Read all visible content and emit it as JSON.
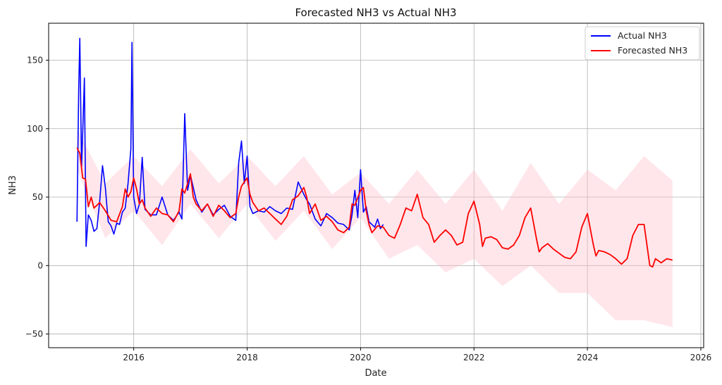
{
  "chart_data": {
    "type": "line",
    "title": "Forecasted NH3 vs Actual NH3",
    "xlabel": "Date",
    "ylabel": "NH3",
    "xlim": [
      2014.5,
      2026.05
    ],
    "ylim": [
      -60,
      177
    ],
    "xticks": [
      2016,
      2018,
      2020,
      2022,
      2024,
      2026
    ],
    "yticks": [
      -50,
      0,
      50,
      100,
      150
    ],
    "grid": true,
    "legend_position": "top-right",
    "series": [
      {
        "name": "Actual NH3",
        "color": "#0000ff",
        "x": [
          2015.0,
          2015.03,
          2015.05,
          2015.08,
          2015.1,
          2015.13,
          2015.16,
          2015.2,
          2015.25,
          2015.3,
          2015.35,
          2015.4,
          2015.45,
          2015.5,
          2015.55,
          2015.6,
          2015.65,
          2015.7,
          2015.75,
          2015.8,
          2015.85,
          2015.9,
          2015.95,
          2015.97,
          2016.0,
          2016.05,
          2016.1,
          2016.15,
          2016.2,
          2016.3,
          2016.4,
          2016.5,
          2016.6,
          2016.7,
          2016.8,
          2016.85,
          2016.9,
          2016.95,
          2017.0,
          2017.1,
          2017.2,
          2017.3,
          2017.4,
          2017.5,
          2017.6,
          2017.7,
          2017.8,
          2017.85,
          2017.9,
          2017.95,
          2018.0,
          2018.05,
          2018.1,
          2018.2,
          2018.3,
          2018.4,
          2018.5,
          2018.6,
          2018.7,
          2018.8,
          2018.9,
          2019.0,
          2019.05,
          2019.1,
          2019.2,
          2019.3,
          2019.4,
          2019.5,
          2019.6,
          2019.7,
          2019.8,
          2019.85,
          2019.9,
          2019.95,
          2020.0,
          2020.05,
          2020.1,
          2020.15,
          2020.2,
          2020.25,
          2020.3,
          2020.35,
          2020.4
        ],
        "values": [
          32,
          128,
          166,
          72,
          97,
          137,
          14,
          37,
          33,
          25,
          27,
          47,
          73,
          57,
          32,
          29,
          23,
          31,
          30,
          39,
          42,
          60,
          85,
          163,
          50,
          38,
          45,
          79,
          41,
          37,
          37,
          50,
          37,
          33,
          39,
          34,
          111,
          55,
          66,
          48,
          39,
          45,
          37,
          41,
          44,
          36,
          33,
          75,
          91,
          60,
          80,
          43,
          38,
          40,
          39,
          43,
          40,
          38,
          42,
          41,
          61,
          52,
          48,
          45,
          34,
          29,
          38,
          35,
          31,
          30,
          26,
          37,
          55,
          35,
          70,
          39,
          43,
          32,
          30,
          28,
          34,
          27,
          30
        ]
      },
      {
        "name": "Forecasted NH3",
        "color": "#ff0000",
        "x": [
          2015.0,
          2015.05,
          2015.1,
          2015.15,
          2015.2,
          2015.25,
          2015.3,
          2015.35,
          2015.4,
          2015.5,
          2015.6,
          2015.7,
          2015.8,
          2015.85,
          2015.9,
          2015.95,
          2016.0,
          2016.05,
          2016.1,
          2016.15,
          2016.2,
          2016.3,
          2016.4,
          2016.5,
          2016.6,
          2016.7,
          2016.8,
          2016.85,
          2016.9,
          2016.95,
          2017.0,
          2017.05,
          2017.1,
          2017.2,
          2017.3,
          2017.4,
          2017.5,
          2017.6,
          2017.7,
          2017.8,
          2017.85,
          2017.9,
          2018.0,
          2018.05,
          2018.1,
          2018.2,
          2018.3,
          2018.4,
          2018.5,
          2018.6,
          2018.7,
          2018.8,
          2018.9,
          2019.0,
          2019.05,
          2019.1,
          2019.2,
          2019.3,
          2019.4,
          2019.5,
          2019.6,
          2019.7,
          2019.8,
          2019.85,
          2019.9,
          2020.0,
          2020.05,
          2020.1,
          2020.15,
          2020.2,
          2020.3,
          2020.4,
          2020.5,
          2020.6,
          2020.7,
          2020.8,
          2020.9,
          2021.0,
          2021.1,
          2021.2,
          2021.3,
          2021.4,
          2021.5,
          2021.6,
          2021.7,
          2021.8,
          2021.9,
          2022.0,
          2022.1,
          2022.15,
          2022.2,
          2022.3,
          2022.4,
          2022.5,
          2022.6,
          2022.7,
          2022.8,
          2022.9,
          2023.0,
          2023.1,
          2023.15,
          2023.2,
          2023.3,
          2023.4,
          2023.5,
          2023.6,
          2023.7,
          2023.8,
          2023.9,
          2024.0,
          2024.1,
          2024.15,
          2024.2,
          2024.3,
          2024.4,
          2024.5,
          2024.6,
          2024.7,
          2024.8,
          2024.9,
          2025.0,
          2025.1,
          2025.15,
          2025.2,
          2025.3,
          2025.4,
          2025.5
        ],
        "values": [
          86,
          82,
          64,
          63,
          43,
          50,
          42,
          44,
          46,
          40,
          33,
          32,
          43,
          56,
          50,
          54,
          64,
          56,
          45,
          48,
          42,
          36,
          42,
          38,
          37,
          32,
          40,
          56,
          53,
          60,
          67,
          50,
          45,
          40,
          45,
          36,
          44,
          40,
          35,
          38,
          50,
          58,
          64,
          52,
          46,
          40,
          42,
          38,
          34,
          30,
          36,
          48,
          51,
          57,
          50,
          38,
          45,
          33,
          36,
          32,
          26,
          24,
          28,
          45,
          44,
          55,
          57,
          40,
          30,
          24,
          29,
          28,
          22,
          20,
          30,
          42,
          40,
          52,
          35,
          30,
          17,
          22,
          26,
          22,
          15,
          17,
          38,
          47,
          30,
          14,
          20,
          21,
          19,
          13,
          12,
          15,
          22,
          35,
          42,
          20,
          10,
          13,
          16,
          12,
          9,
          6,
          5,
          10,
          28,
          38,
          16,
          7,
          11,
          10,
          8,
          5,
          1,
          5,
          22,
          30,
          30,
          0,
          -1,
          5,
          2,
          5,
          4
        ]
      }
    ],
    "confidence_band": {
      "color": "#ffc0cb",
      "x": [
        2015.0,
        2015.5,
        2016.0,
        2016.5,
        2017.0,
        2017.5,
        2018.0,
        2018.5,
        2019.0,
        2019.5,
        2020.0,
        2020.5,
        2021.0,
        2021.5,
        2022.0,
        2022.5,
        2023.0,
        2023.5,
        2024.0,
        2024.5,
        2025.0,
        2025.5
      ],
      "lower": [
        70,
        20,
        40,
        15,
        45,
        20,
        45,
        18,
        40,
        12,
        35,
        5,
        15,
        -5,
        5,
        -15,
        0,
        -20,
        -20,
        -40,
        -40,
        -45
      ],
      "upper": [
        100,
        60,
        80,
        58,
        85,
        60,
        80,
        58,
        80,
        52,
        68,
        45,
        70,
        45,
        70,
        40,
        75,
        45,
        70,
        55,
        80,
        62
      ]
    }
  }
}
